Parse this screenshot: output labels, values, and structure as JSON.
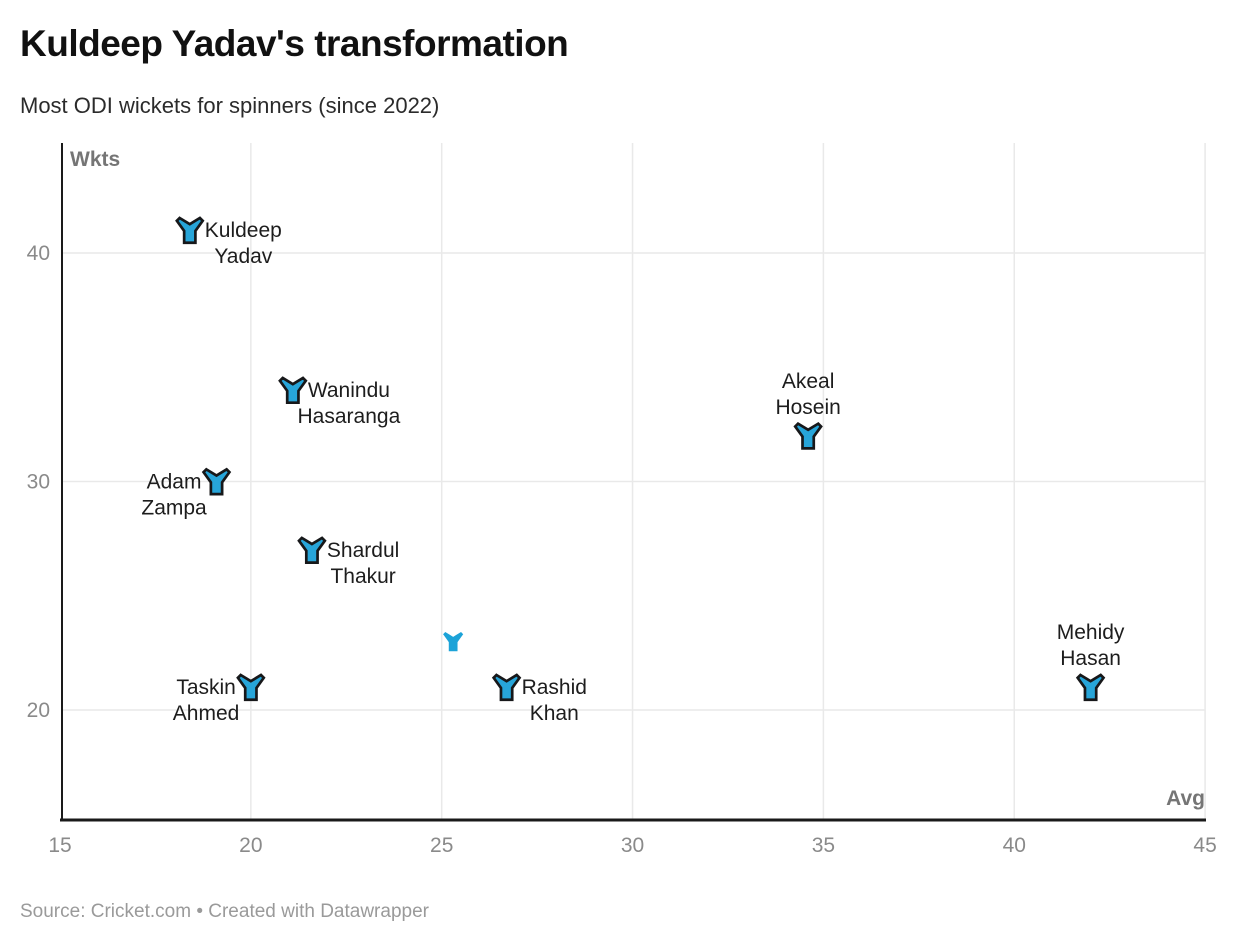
{
  "header": {
    "title": "Kuldeep Yadav's transformation",
    "subtitle": "Most ODI wickets for spinners (since 2022)"
  },
  "footer": {
    "text": "Source: Cricket.com • Created with Datawrapper"
  },
  "chart_data": {
    "type": "scatter",
    "title": "Kuldeep Yadav's transformation",
    "subtitle": "Most ODI wickets for spinners (since 2022)",
    "xlabel": "Avg",
    "ylabel": "Wkts",
    "xlim": [
      15,
      45
    ],
    "ylim": [
      15,
      45
    ],
    "x_ticks": [
      15,
      20,
      25,
      30,
      35,
      40,
      45
    ],
    "y_ticks": [
      20,
      30,
      40
    ],
    "grid": true,
    "legend": "none",
    "marker_shape": "jersey-icon",
    "colors": {
      "marker_fill": "#27a5d9",
      "marker_fill_plain": "#1ca3d8",
      "marker_stroke": "#17181a",
      "grid": "#e9e9e9",
      "axis": "#1a1a1a",
      "tick_label": "#8a8a8a",
      "unit_label": "#757575",
      "label_text": "#1d1d1d"
    },
    "points": [
      {
        "name": "Kuldeep Yadav",
        "label_lines": [
          "Kuldeep",
          "Yadav"
        ],
        "avg": 18.4,
        "wkts": 41,
        "label_pos": "right",
        "outlined": true
      },
      {
        "name": "Wanindu Hasaranga",
        "label_lines": [
          "Wanindu",
          "Hasaranga"
        ],
        "avg": 21.1,
        "wkts": 34,
        "label_pos": "right",
        "outlined": true
      },
      {
        "name": "Adam Zampa",
        "label_lines": [
          "Adam",
          "Zampa"
        ],
        "avg": 19.1,
        "wkts": 30,
        "label_pos": "left",
        "outlined": true
      },
      {
        "name": "Shardul Thakur",
        "label_lines": [
          "Shardul",
          "Thakur"
        ],
        "avg": 21.6,
        "wkts": 27,
        "label_pos": "right",
        "outlined": true
      },
      {
        "name": "",
        "label_lines": [],
        "avg": 25.3,
        "wkts": 23,
        "label_pos": "none",
        "outlined": false
      },
      {
        "name": "Taskin Ahmed",
        "label_lines": [
          "Taskin",
          "Ahmed"
        ],
        "avg": 20.0,
        "wkts": 21,
        "label_pos": "left",
        "outlined": true
      },
      {
        "name": "Rashid Khan",
        "label_lines": [
          "Rashid",
          "Khan"
        ],
        "avg": 26.7,
        "wkts": 21,
        "label_pos": "right",
        "outlined": true
      },
      {
        "name": "Akeal Hosein",
        "label_lines": [
          "Akeal",
          "Hosein"
        ],
        "avg": 34.6,
        "wkts": 32,
        "label_pos": "above",
        "outlined": true
      },
      {
        "name": "Mehidy Hasan",
        "label_lines": [
          "Mehidy",
          "Hasan"
        ],
        "avg": 42.0,
        "wkts": 21,
        "label_pos": "above",
        "outlined": true
      }
    ]
  }
}
